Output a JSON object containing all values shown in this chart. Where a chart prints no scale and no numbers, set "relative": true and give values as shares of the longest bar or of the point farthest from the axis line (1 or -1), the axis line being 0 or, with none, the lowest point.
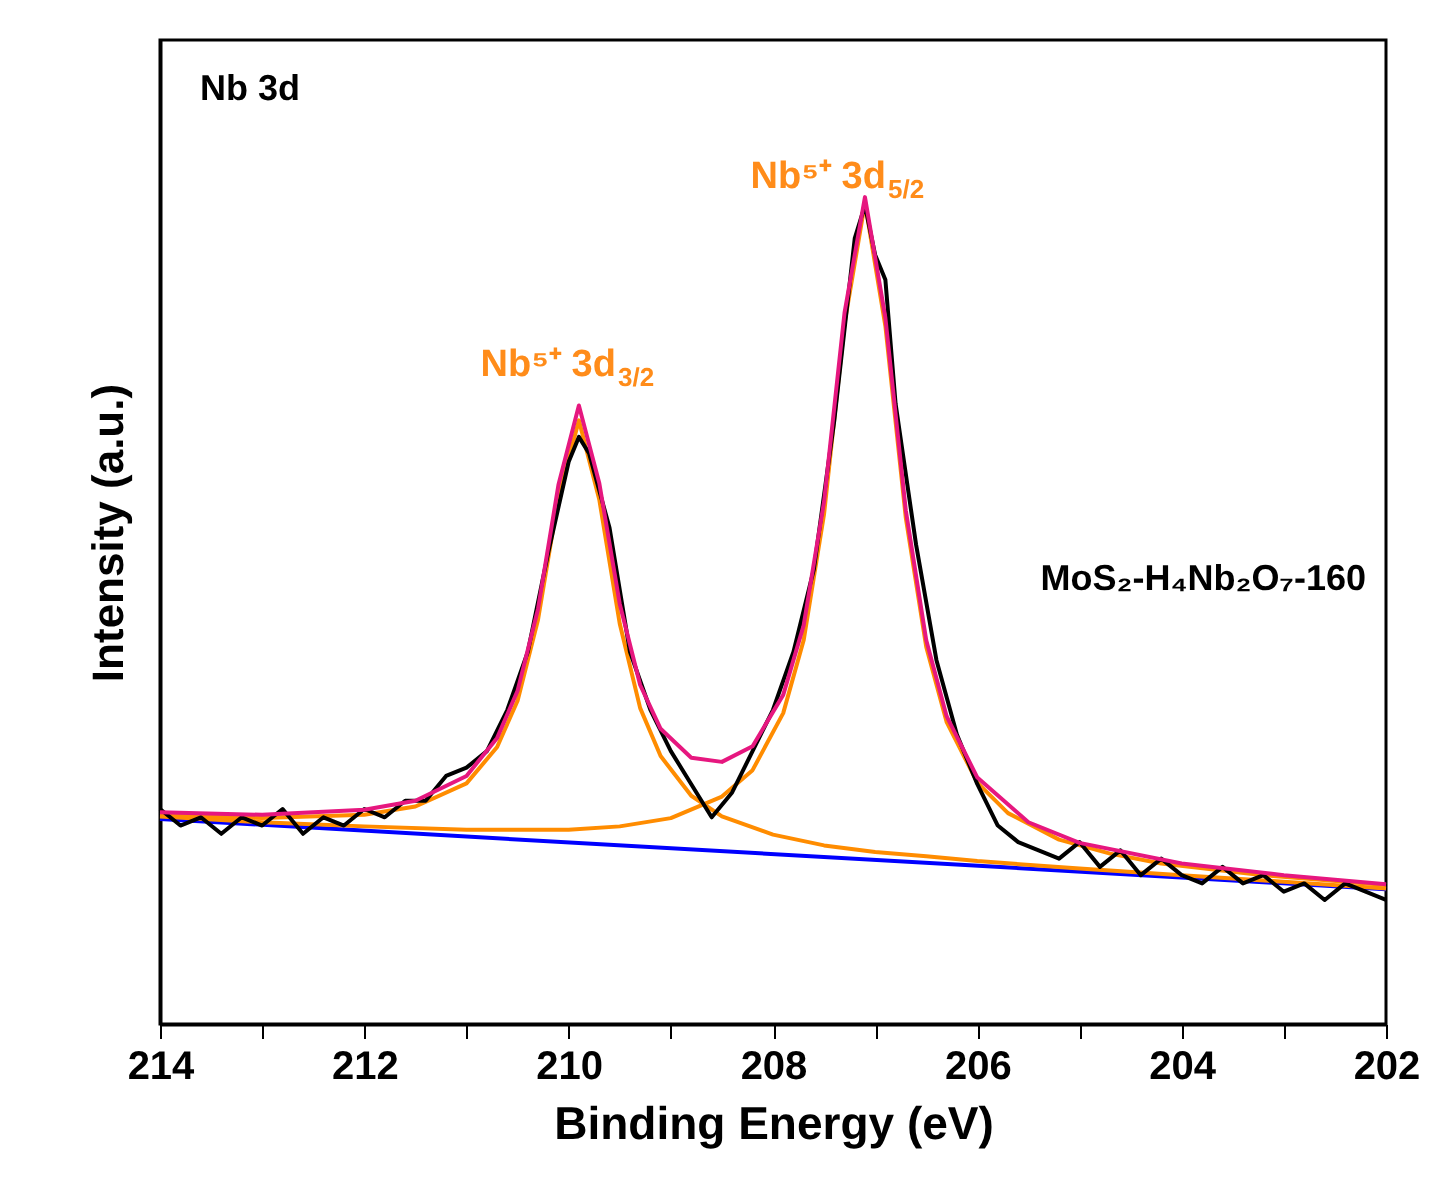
{
  "chart_data": {
    "type": "line",
    "relative": true,
    "xlabel": "Binding Energy (eV)",
    "ylabel": "Intensity (a.u.)",
    "xlim": [
      214,
      202
    ],
    "xticks": [
      214,
      {
        "value": 213,
        "label": null
      },
      212,
      {
        "value": 211,
        "label": null
      },
      210,
      {
        "value": 209,
        "label": null
      },
      208,
      {
        "value": 207,
        "label": null
      },
      206,
      {
        "value": 205,
        "label": null
      },
      204,
      {
        "value": 203,
        "label": null
      },
      202
    ],
    "grid": false,
    "marker": "none",
    "line_style": "solid",
    "annotations": [
      "Nb 3d",
      "Nb⁵⁺ 3d$_{3/2}$",
      "Nb⁵⁺ 3d$_{5/2}$",
      "MoS₂-H₄Nb₂O₇-160"
    ],
    "series": [
      {
        "color": "#0000ff",
        "x": [
          214,
          202
        ],
        "values": [
          0.248,
          0.163
        ]
      },
      {
        "color": "#ff8c00",
        "x": [
          214,
          213,
          212,
          211.5,
          211,
          210.7,
          210.5,
          210.3,
          210.1,
          209.9,
          209.7,
          209.5,
          209.3,
          209.1,
          208.8,
          208.5,
          208,
          207.5,
          207,
          206.5,
          206,
          205,
          204,
          203,
          202
        ],
        "values": [
          0.253,
          0.249,
          0.253,
          0.263,
          0.291,
          0.335,
          0.391,
          0.489,
          0.637,
          0.73,
          0.634,
          0.484,
          0.382,
          0.324,
          0.276,
          0.251,
          0.229,
          0.216,
          0.208,
          0.203,
          0.197,
          0.188,
          0.18,
          0.172,
          0.164
        ]
      },
      {
        "color": "#ff8c00",
        "x": [
          214,
          213,
          212,
          211,
          210,
          209.5,
          209,
          208.5,
          208.2,
          207.9,
          207.7,
          207.5,
          207.3,
          207.1,
          206.9,
          206.7,
          206.5,
          206.3,
          206,
          205.7,
          205.2,
          204.7,
          204.2,
          203.2,
          202
        ],
        "values": [
          0.251,
          0.244,
          0.239,
          0.235,
          0.235,
          0.239,
          0.249,
          0.275,
          0.307,
          0.376,
          0.464,
          0.617,
          0.847,
          0.993,
          0.844,
          0.612,
          0.456,
          0.365,
          0.292,
          0.255,
          0.223,
          0.206,
          0.194,
          0.18,
          0.168
        ]
      },
      {
        "color": "#000000",
        "x": [
          214,
          213.8,
          213.6,
          213.4,
          213.2,
          213.0,
          212.8,
          212.6,
          212.4,
          212.2,
          212.0,
          211.8,
          211.6,
          211.4,
          211.2,
          211.0,
          210.8,
          210.6,
          210.4,
          210.2,
          210.0,
          209.9,
          209.8,
          209.6,
          209.4,
          209.2,
          209.0,
          208.8,
          208.6,
          208.4,
          208.2,
          208.0,
          207.8,
          207.6,
          207.4,
          207.2,
          207.1,
          207.0,
          206.9,
          206.8,
          206.6,
          206.4,
          206.2,
          206.0,
          205.8,
          205.6,
          205.4,
          205.2,
          205.0,
          204.8,
          204.6,
          204.4,
          204.2,
          204.0,
          203.8,
          203.6,
          203.4,
          203.2,
          203.0,
          202.8,
          202.6,
          202.4,
          202.2,
          202.0
        ],
        "values": [
          0.26,
          0.24,
          0.25,
          0.23,
          0.25,
          0.24,
          0.26,
          0.23,
          0.25,
          0.24,
          0.26,
          0.25,
          0.27,
          0.27,
          0.3,
          0.31,
          0.33,
          0.38,
          0.45,
          0.57,
          0.68,
          0.71,
          0.69,
          0.6,
          0.45,
          0.38,
          0.33,
          0.29,
          0.25,
          0.28,
          0.33,
          0.38,
          0.45,
          0.55,
          0.73,
          0.95,
          0.99,
          0.93,
          0.9,
          0.75,
          0.58,
          0.44,
          0.35,
          0.29,
          0.24,
          0.22,
          0.21,
          0.2,
          0.22,
          0.19,
          0.21,
          0.18,
          0.2,
          0.18,
          0.17,
          0.19,
          0.17,
          0.18,
          0.16,
          0.17,
          0.15,
          0.17,
          0.16,
          0.15
        ]
      },
      {
        "color": "#e6177f",
        "x": [
          214,
          213,
          212,
          211.5,
          211,
          210.7,
          210.5,
          210.3,
          210.1,
          209.9,
          209.7,
          209.5,
          209.3,
          209.1,
          208.8,
          208.5,
          208.2,
          207.9,
          207.7,
          207.5,
          207.3,
          207.1,
          206.9,
          206.7,
          206.5,
          206.3,
          206,
          205.5,
          205,
          204,
          203,
          202
        ],
        "values": [
          0.256,
          0.253,
          0.259,
          0.27,
          0.3,
          0.346,
          0.403,
          0.502,
          0.652,
          0.748,
          0.654,
          0.508,
          0.41,
          0.357,
          0.322,
          0.317,
          0.336,
          0.398,
          0.482,
          0.632,
          0.86,
          1.0,
          0.854,
          0.621,
          0.464,
          0.372,
          0.298,
          0.244,
          0.219,
          0.194,
          0.18,
          0.169
        ]
      }
    ]
  }
}
